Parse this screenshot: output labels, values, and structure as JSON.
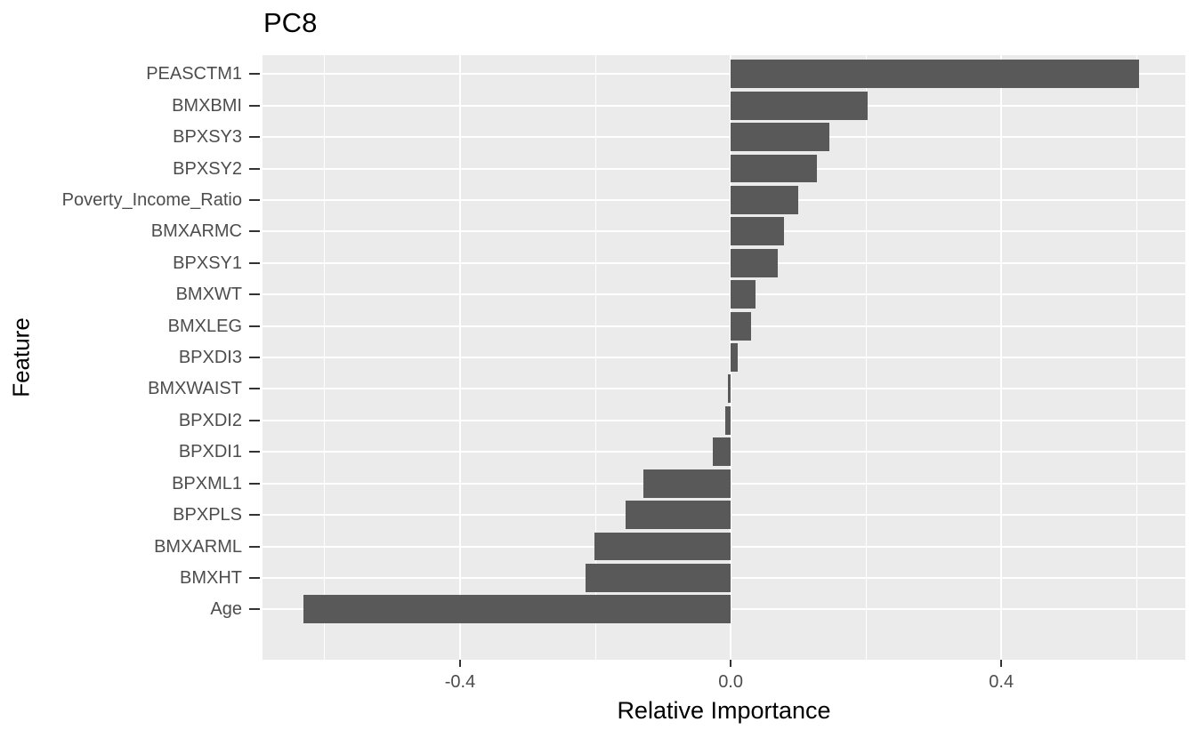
{
  "chart_data": {
    "type": "bar",
    "orientation": "horizontal",
    "title": "PC8",
    "xlabel": "Relative Importance",
    "ylabel": "Feature",
    "categories": [
      "PEASCTM1",
      "BMXBMI",
      "BPXSY3",
      "BPXSY2",
      "Poverty_Income_Ratio",
      "BMXARMC",
      "BPXSY1",
      "BMXWT",
      "BMXLEG",
      "BPXDI3",
      "BMXWAIST",
      "BPXDI2",
      "BPXDI1",
      "BPXML1",
      "BPXPLS",
      "BMXARML",
      "BMXHT",
      "Age"
    ],
    "values": [
      0.604,
      0.202,
      0.146,
      0.127,
      0.1,
      0.079,
      0.07,
      0.037,
      0.03,
      0.01,
      -0.004,
      -0.008,
      -0.027,
      -0.129,
      -0.156,
      -0.201,
      -0.215,
      -0.632
    ],
    "x_ticks": [
      -0.4,
      0.0,
      0.4
    ],
    "x_tick_labels": [
      "-0.4",
      "0.0",
      "0.4"
    ],
    "x_minor_ticks": [
      -0.6,
      -0.2,
      0.2,
      0.6
    ],
    "xlim": [
      -0.692,
      0.672
    ],
    "bar_width_fraction": 0.9,
    "grid": true,
    "legend": false,
    "colors": {
      "bar_fill": "#595959",
      "panel_background": "#EBEBEB",
      "gridline": "#FFFFFF",
      "axis_text": "#4D4D4D",
      "tick_mark": "#333333",
      "title_text": "#000000"
    }
  }
}
